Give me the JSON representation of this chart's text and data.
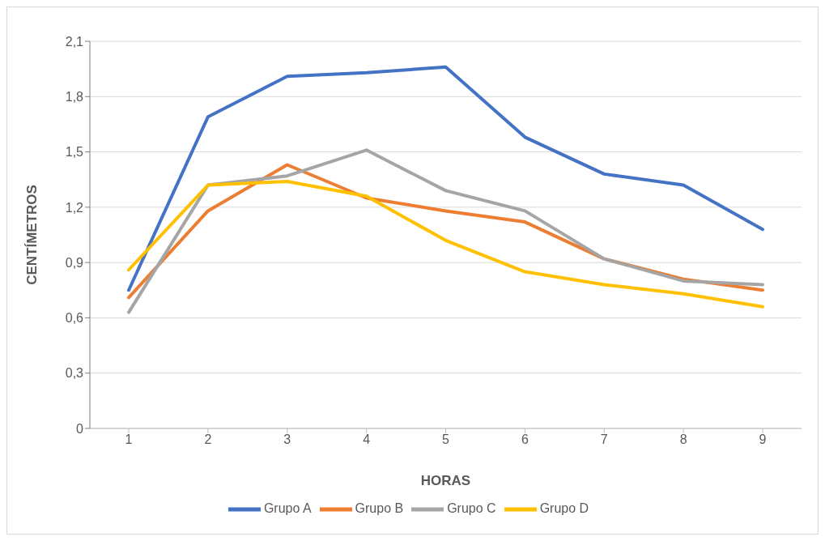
{
  "chart_data": {
    "type": "line",
    "xlabel": "HORAS",
    "ylabel": "CENTÍMETROS",
    "categories": [
      "1",
      "2",
      "3",
      "4",
      "5",
      "6",
      "7",
      "8",
      "9"
    ],
    "series": [
      {
        "name": "Grupo A",
        "color": "#4472c4",
        "values": [
          0.75,
          1.69,
          1.91,
          1.93,
          1.96,
          1.58,
          1.38,
          1.32,
          1.08
        ]
      },
      {
        "name": "Grupo B",
        "color": "#ed7d31",
        "values": [
          0.71,
          1.18,
          1.43,
          1.25,
          1.18,
          1.12,
          0.92,
          0.81,
          0.75
        ]
      },
      {
        "name": "Grupo C",
        "color": "#a5a5a5",
        "values": [
          0.63,
          1.32,
          1.37,
          1.51,
          1.29,
          1.18,
          0.92,
          0.8,
          0.78
        ]
      },
      {
        "name": "Grupo D",
        "color": "#ffc000",
        "values": [
          0.86,
          1.32,
          1.34,
          1.26,
          1.02,
          0.85,
          0.78,
          0.73,
          0.66
        ]
      }
    ],
    "ylim": [
      0,
      2.1
    ],
    "yticks": [
      0,
      {
        "value": 0.3,
        "label": "0,3"
      },
      {
        "value": 0.6,
        "label": "0,6"
      },
      {
        "value": 0.9,
        "label": "0,9"
      },
      {
        "value": 1.2,
        "label": "1,2"
      },
      {
        "value": 1.5,
        "label": "1,5"
      },
      {
        "value": 1.8,
        "label": "1,8"
      },
      {
        "value": 2.1,
        "label": "2,1"
      }
    ],
    "grid": "y",
    "legend": "bottom"
  }
}
